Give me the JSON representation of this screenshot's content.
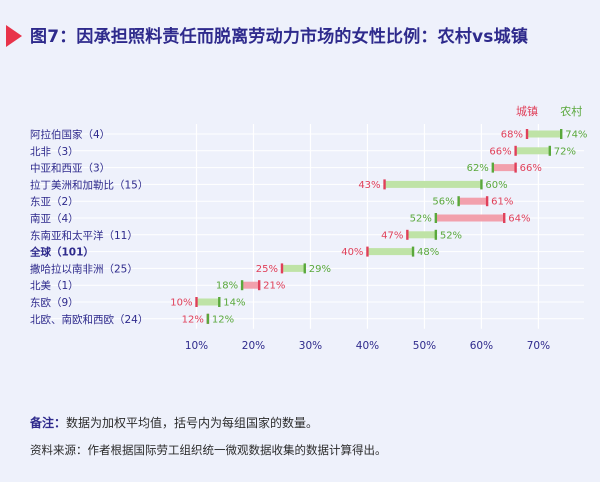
{
  "title": "图7：因承担照料责任而脱离劳动力市场的女性比例：农村vs城镇",
  "note_label": "备注：",
  "note_text": "数据为加权平均值，括号内为每组国家的数量。",
  "source": "资料来源：作者根据国际劳工组织统一微观数据收集的数据计算得出。",
  "colors": {
    "urban": "#e0405a",
    "rural": "#5aa83c",
    "title": "#2e2a8c",
    "background": "#eef1fb"
  },
  "chart_data": {
    "type": "dumbbell",
    "legend": {
      "urban": "城镇",
      "rural": "农村",
      "placement": "top-right"
    },
    "x_ticks": [
      "10%",
      "20%",
      "30%",
      "40%",
      "50%",
      "60%",
      "70%"
    ],
    "xlim": [
      5,
      78
    ],
    "grid": true,
    "rows": [
      {
        "label": "阿拉伯国家（4）",
        "urban": 68,
        "rural": 74,
        "urban_label": "68%",
        "rural_label": "74%",
        "bold": false
      },
      {
        "label": "北非（3）",
        "urban": 66,
        "rural": 72,
        "urban_label": "66%",
        "rural_label": "72%",
        "bold": false
      },
      {
        "label": "中亚和西亚（3）",
        "urban": 66,
        "rural": 62,
        "urban_label": "66%",
        "rural_label": "62%",
        "bold": false
      },
      {
        "label": "拉丁美洲和加勒比（15）",
        "urban": 43,
        "rural": 60,
        "urban_label": "43%",
        "rural_label": "60%",
        "bold": false
      },
      {
        "label": "东亚（2）",
        "urban": 61,
        "rural": 56,
        "urban_label": "61%",
        "rural_label": "56%",
        "bold": false
      },
      {
        "label": "南亚（4）",
        "urban": 64,
        "rural": 52,
        "urban_label": "64%",
        "rural_label": "52%",
        "bold": false
      },
      {
        "label": "东南亚和太平洋（11）",
        "urban": 47,
        "rural": 52,
        "urban_label": "47%",
        "rural_label": "52%",
        "bold": false
      },
      {
        "label": "全球（101）",
        "urban": 40,
        "rural": 48,
        "urban_label": "40%",
        "rural_label": "48%",
        "bold": true
      },
      {
        "label": "撒哈拉以南非洲（25）",
        "urban": 25,
        "rural": 29,
        "urban_label": "25%",
        "rural_label": "29%",
        "bold": false
      },
      {
        "label": "北美（1）",
        "urban": 21,
        "rural": 18,
        "urban_label": "21%",
        "rural_label": "18%",
        "bold": false
      },
      {
        "label": "东欧（9）",
        "urban": 10,
        "rural": 14,
        "urban_label": "10%",
        "rural_label": "14%",
        "bold": false
      },
      {
        "label": "北欧、南欧和西欧（24）",
        "urban": 12,
        "rural": 12,
        "urban_label": "12%",
        "rural_label": "12%",
        "bold": false
      }
    ]
  }
}
